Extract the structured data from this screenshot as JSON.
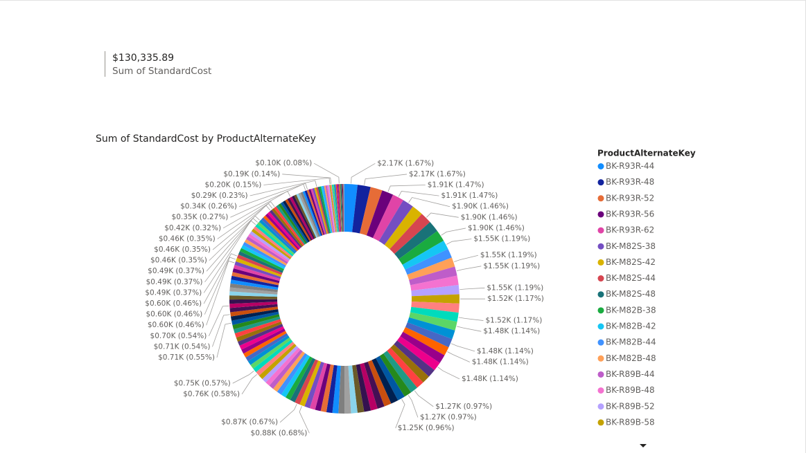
{
  "card": {
    "value": "$130,335.89",
    "label": "Sum of StandardCost"
  },
  "chart_data": {
    "type": "donut",
    "title": "Sum of StandardCost by ProductAlternateKey",
    "legend_title": "ProductAlternateKey",
    "categories": [
      "BK-R93R-44",
      "BK-R93R-48",
      "BK-R93R-52",
      "BK-R93R-56",
      "BK-R93R-62",
      "BK-M82S-38",
      "BK-M82S-42",
      "BK-M82S-44",
      "BK-M82S-48",
      "BK-M82B-38",
      "BK-M82B-42",
      "BK-M82B-44",
      "BK-M82B-48",
      "BK-R89B-44",
      "BK-R89B-48",
      "BK-R89B-52",
      "BK-R89B-58",
      null,
      null,
      null,
      null,
      null,
      null,
      null,
      null,
      null,
      null,
      null,
      null,
      null,
      null,
      null,
      null,
      null,
      null,
      null,
      null,
      null,
      null,
      null,
      null,
      null,
      null,
      null,
      null,
      null,
      null,
      null,
      null,
      null,
      null,
      null,
      null,
      null,
      null,
      null,
      null,
      null,
      null,
      null,
      null,
      null,
      null,
      null,
      null,
      null,
      null,
      null,
      null,
      null,
      null,
      null,
      null,
      null,
      null,
      null,
      null,
      null,
      null,
      null,
      null,
      null,
      null,
      null,
      null,
      null,
      null,
      null,
      null,
      null,
      null,
      null,
      null,
      null,
      null,
      null,
      null,
      null,
      null,
      null,
      null,
      null,
      null,
      null,
      null,
      null,
      null,
      null,
      null,
      null,
      null,
      null,
      null,
      null,
      null,
      null,
      null,
      null,
      null,
      null,
      null,
      null,
      null,
      null,
      null,
      null,
      null,
      null,
      null,
      null,
      null,
      null,
      null,
      null,
      null,
      null,
      null,
      null,
      null,
      null,
      null,
      null,
      null,
      null,
      null,
      null,
      null,
      null,
      null,
      null,
      null,
      null,
      null,
      null,
      null,
      null,
      null,
      null,
      null,
      null,
      null,
      null
    ],
    "values": [
      2170,
      2170,
      2000,
      1910,
      1910,
      1900,
      1900,
      1900,
      1900,
      1900,
      1550,
      1550,
      1550,
      1550,
      1550,
      1550,
      1520,
      1520,
      1520,
      1480,
      1480,
      1480,
      1480,
      1480,
      1480,
      1400,
      1350,
      1300,
      1270,
      1270,
      1250,
      1250,
      1200,
      1180,
      1150,
      1120,
      1100,
      1080,
      1050,
      1030,
      1000,
      980,
      960,
      940,
      920,
      900,
      880,
      870,
      860,
      850,
      840,
      830,
      820,
      810,
      800,
      790,
      780,
      760,
      750,
      740,
      740,
      730,
      730,
      725,
      725,
      725,
      725,
      720,
      720,
      720,
      715,
      710,
      710,
      705,
      700,
      690,
      680,
      670,
      660,
      650,
      650,
      640,
      630,
      620,
      610,
      600,
      600,
      600,
      590,
      580,
      570,
      560,
      550,
      540,
      530,
      520,
      510,
      500,
      490,
      490,
      490,
      480,
      475,
      470,
      465,
      460,
      460,
      460,
      450,
      445,
      440,
      435,
      430,
      425,
      420,
      410,
      400,
      390,
      380,
      370,
      360,
      350,
      340,
      330,
      320,
      310,
      300,
      290,
      280,
      270,
      260,
      250,
      240,
      230,
      220,
      210,
      200,
      190,
      180,
      170,
      160,
      150,
      140,
      130,
      120,
      110,
      100,
      90,
      85,
      80,
      75,
      70,
      65,
      60,
      55,
      50,
      45,
      40,
      35,
      30,
      25,
      20
    ],
    "value_labels": [
      "$2.17K (1.67%)",
      "$2.17K (1.67%)",
      null,
      "$1.91K (1.47%)",
      "$1.91K (1.47%)",
      "$1.90K (1.46%)",
      null,
      "$1.90K (1.46%)",
      null,
      "$1.90K (1.46%)",
      "$1.55K (1.19%)",
      null,
      "$1.55K (1.19%)",
      "$1.55K (1.19%)",
      null,
      "$1.55K (1.19%)",
      "$1.52K (1.17%)",
      null,
      "$1.52K (1.17%)",
      "$1.48K (1.14%)",
      null,
      "$1.48K (1.14%)",
      "$1.48K (1.14%)",
      null,
      "$1.48K (1.14%)",
      null,
      null,
      null,
      "$1.27K (0.97%)",
      "$1.27K (0.97%)",
      "$1.25K (0.96%)",
      null,
      null,
      null,
      null,
      null,
      null,
      null,
      null,
      null,
      null,
      null,
      null,
      null,
      null,
      null,
      "$0.88K (0.68%)",
      "$0.87K (0.67%)",
      null,
      null,
      null,
      null,
      null,
      null,
      null,
      null,
      null,
      "$0.76K (0.58%)",
      "$0.75K (0.57%)",
      null,
      null,
      null,
      null,
      null,
      null,
      null,
      null,
      null,
      null,
      null,
      "$0.71K (0.55%)",
      null,
      "$0.71K (0.54%)",
      null,
      "$0.70K (0.54%)",
      null,
      null,
      null,
      null,
      null,
      null,
      null,
      null,
      null,
      null,
      "$0.60K (0.46%)",
      "$0.60K (0.46%)",
      "$0.60K (0.46%)",
      null,
      null,
      null,
      null,
      null,
      null,
      null,
      null,
      null,
      null,
      "$0.49K (0.37%)",
      "$0.49K (0.37%)",
      "$0.49K (0.37%)",
      null,
      null,
      null,
      null,
      "$0.46K (0.35%)",
      "$0.46K (0.35%)",
      "$0.46K (0.35%)",
      null,
      null,
      null,
      null,
      null,
      null,
      "$0.42K (0.32%)",
      null,
      null,
      null,
      null,
      null,
      null,
      "$0.35K (0.27%)",
      "$0.34K (0.26%)",
      null,
      null,
      null,
      null,
      "$0.29K (0.23%)",
      null,
      null,
      null,
      null,
      null,
      null,
      null,
      null,
      "$0.20K (0.15%)",
      "$0.19K (0.14%)",
      null,
      null,
      null,
      null,
      null,
      null,
      null,
      null,
      "$0.10K (0.08%)",
      null,
      null,
      null,
      null,
      null,
      null,
      null,
      null,
      null,
      null,
      null,
      null,
      null,
      null,
      null
    ],
    "palette": [
      "#118DFF",
      "#12239E",
      "#E66C37",
      "#6B007B",
      "#E044A7",
      "#744EC2",
      "#D9B300",
      "#D64550",
      "#197278",
      "#1AAB40",
      "#15C6F4",
      "#4092FF",
      "#FFA058",
      "#BE5DC9",
      "#F472D0",
      "#B5A1FF",
      "#C4A200",
      "#FF8080",
      "#00DBBC",
      "#5BD667",
      "#0091D5",
      "#4668C5",
      "#FF6300",
      "#99008A",
      "#EC008C",
      "#533285",
      "#99700A",
      "#FF4141",
      "#1F9A85",
      "#25891C",
      "#0057A2",
      "#002050",
      "#C94F0F",
      "#450F54",
      "#B60064",
      "#34124F",
      "#6A5A29",
      "#8AD4EB",
      "#A0A0A0",
      "#7F7F7F"
    ],
    "legend": "right"
  }
}
